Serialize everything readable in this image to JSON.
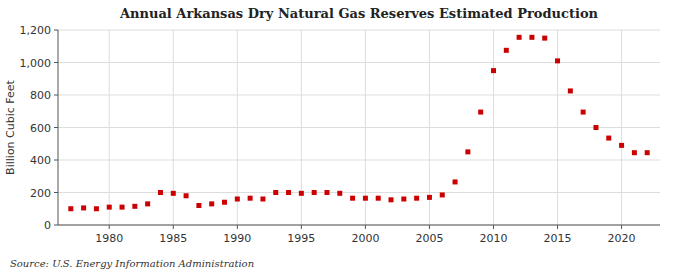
{
  "chart_data": {
    "type": "scatter",
    "title": "Annual Arkansas Dry Natural Gas Reserves Estimated Production",
    "ylabel": "Billion Cubic Feet",
    "source": "Source: U.S. Energy Information Administration",
    "color": "#cc0000",
    "marker": "square",
    "grid": true,
    "xlim": [
      1976,
      2023
    ],
    "ylim": [
      0,
      1200
    ],
    "xticks": [
      1980,
      1985,
      1990,
      1995,
      2000,
      2005,
      2010,
      2015,
      2020
    ],
    "yticks": [
      0,
      200,
      400,
      600,
      800,
      {
        "value": 1000,
        "label": "1,000"
      },
      {
        "value": 1200,
        "label": "1,200"
      }
    ],
    "x": [
      1977,
      1978,
      1979,
      1980,
      1981,
      1982,
      1983,
      1984,
      1985,
      1986,
      1987,
      1988,
      1989,
      1990,
      1991,
      1992,
      1993,
      1994,
      1995,
      1996,
      1997,
      1998,
      1999,
      2000,
      2001,
      2002,
      2003,
      2004,
      2005,
      2006,
      2007,
      2008,
      2009,
      2010,
      2011,
      2012,
      2013,
      2014,
      2015,
      2016,
      2017,
      2018,
      2019,
      2020,
      2021,
      2022
    ],
    "values": [
      100,
      105,
      100,
      110,
      110,
      115,
      130,
      200,
      195,
      180,
      120,
      130,
      140,
      160,
      165,
      160,
      200,
      200,
      195,
      200,
      200,
      195,
      165,
      165,
      165,
      155,
      160,
      165,
      170,
      185,
      265,
      450,
      695,
      950,
      1075,
      1155,
      1155,
      1150,
      1010,
      825,
      695,
      600,
      535,
      490,
      445,
      445
    ]
  }
}
